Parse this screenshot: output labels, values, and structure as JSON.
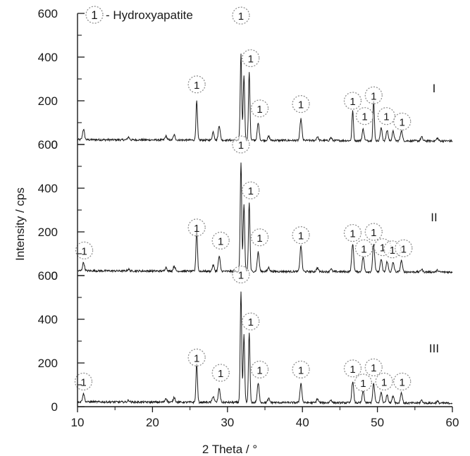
{
  "chart_data": {
    "type": "line",
    "xlabel": "2 Theta / °",
    "ylabel": "Intensity / cps",
    "xlim": [
      10,
      60
    ],
    "ylim": [
      0,
      600
    ],
    "x_ticks": [
      "10",
      "20",
      "30",
      "40",
      "50",
      "60"
    ],
    "y_ticks": [
      "0",
      "200",
      "400",
      "600"
    ],
    "legend": {
      "marker": "1",
      "text": "- Hydroxyapatite"
    },
    "grid": false,
    "panels": [
      {
        "name": "I",
        "peaks": [
          {
            "x": 10.8,
            "y": 70
          },
          {
            "x": 16.8,
            "y": 35
          },
          {
            "x": 21.8,
            "y": 40
          },
          {
            "x": 22.9,
            "y": 45
          },
          {
            "x": 25.9,
            "y": 200
          },
          {
            "x": 28.1,
            "y": 60
          },
          {
            "x": 28.9,
            "y": 90
          },
          {
            "x": 31.8,
            "y": 415
          },
          {
            "x": 32.2,
            "y": 320
          },
          {
            "x": 32.9,
            "y": 330
          },
          {
            "x": 34.1,
            "y": 100
          },
          {
            "x": 35.5,
            "y": 40
          },
          {
            "x": 39.8,
            "y": 120
          },
          {
            "x": 42.0,
            "y": 40
          },
          {
            "x": 43.8,
            "y": 35
          },
          {
            "x": 46.7,
            "y": 160
          },
          {
            "x": 48.1,
            "y": 75
          },
          {
            "x": 49.5,
            "y": 200
          },
          {
            "x": 50.5,
            "y": 80
          },
          {
            "x": 51.3,
            "y": 70
          },
          {
            "x": 52.1,
            "y": 65
          },
          {
            "x": 53.2,
            "y": 70
          },
          {
            "x": 55.9,
            "y": 40
          },
          {
            "x": 58.0,
            "y": 35
          }
        ],
        "markers": [
          {
            "x": 25.9,
            "y": 275
          },
          {
            "x": 31.8,
            "y": 590
          },
          {
            "x": 33.1,
            "y": 395
          },
          {
            "x": 34.3,
            "y": 165
          },
          {
            "x": 39.8,
            "y": 185
          },
          {
            "x": 46.7,
            "y": 200
          },
          {
            "x": 48.3,
            "y": 130
          },
          {
            "x": 49.5,
            "y": 225
          },
          {
            "x": 51.2,
            "y": 130
          },
          {
            "x": 53.3,
            "y": 105
          }
        ]
      },
      {
        "name": "II",
        "peaks": [
          {
            "x": 10.8,
            "y": 60
          },
          {
            "x": 16.8,
            "y": 30
          },
          {
            "x": 21.8,
            "y": 40
          },
          {
            "x": 22.9,
            "y": 45
          },
          {
            "x": 25.9,
            "y": 215
          },
          {
            "x": 28.1,
            "y": 50
          },
          {
            "x": 28.9,
            "y": 90
          },
          {
            "x": 31.8,
            "y": 520
          },
          {
            "x": 32.2,
            "y": 330
          },
          {
            "x": 32.9,
            "y": 335
          },
          {
            "x": 34.1,
            "y": 110
          },
          {
            "x": 35.5,
            "y": 40
          },
          {
            "x": 39.8,
            "y": 140
          },
          {
            "x": 42.0,
            "y": 40
          },
          {
            "x": 43.8,
            "y": 35
          },
          {
            "x": 46.7,
            "y": 150
          },
          {
            "x": 48.1,
            "y": 90
          },
          {
            "x": 49.5,
            "y": 150
          },
          {
            "x": 50.5,
            "y": 80
          },
          {
            "x": 51.3,
            "y": 70
          },
          {
            "x": 52.1,
            "y": 65
          },
          {
            "x": 53.2,
            "y": 75
          },
          {
            "x": 55.9,
            "y": 35
          },
          {
            "x": 58.0,
            "y": 30
          }
        ],
        "markers": [
          {
            "x": 10.9,
            "y": 115
          },
          {
            "x": 25.9,
            "y": 220
          },
          {
            "x": 29.1,
            "y": 160
          },
          {
            "x": 31.8,
            "y": 600
          },
          {
            "x": 33.1,
            "y": 390
          },
          {
            "x": 34.3,
            "y": 175
          },
          {
            "x": 39.8,
            "y": 185
          },
          {
            "x": 46.7,
            "y": 195
          },
          {
            "x": 48.2,
            "y": 125
          },
          {
            "x": 49.5,
            "y": 200
          },
          {
            "x": 50.7,
            "y": 130
          },
          {
            "x": 52.0,
            "y": 120
          },
          {
            "x": 53.5,
            "y": 125
          }
        ]
      },
      {
        "name": "III",
        "peaks": [
          {
            "x": 10.8,
            "y": 60
          },
          {
            "x": 16.8,
            "y": 30
          },
          {
            "x": 21.8,
            "y": 40
          },
          {
            "x": 22.9,
            "y": 45
          },
          {
            "x": 25.9,
            "y": 200
          },
          {
            "x": 28.1,
            "y": 50
          },
          {
            "x": 28.9,
            "y": 85
          },
          {
            "x": 31.8,
            "y": 525
          },
          {
            "x": 32.2,
            "y": 330
          },
          {
            "x": 32.9,
            "y": 340
          },
          {
            "x": 34.1,
            "y": 110
          },
          {
            "x": 35.5,
            "y": 40
          },
          {
            "x": 39.8,
            "y": 110
          },
          {
            "x": 42.0,
            "y": 40
          },
          {
            "x": 43.8,
            "y": 35
          },
          {
            "x": 46.7,
            "y": 120
          },
          {
            "x": 48.1,
            "y": 75
          },
          {
            "x": 49.5,
            "y": 110
          },
          {
            "x": 50.5,
            "y": 70
          },
          {
            "x": 51.3,
            "y": 60
          },
          {
            "x": 52.1,
            "y": 55
          },
          {
            "x": 53.2,
            "y": 70
          },
          {
            "x": 55.9,
            "y": 35
          },
          {
            "x": 58.0,
            "y": 30
          }
        ],
        "markers": [
          {
            "x": 10.8,
            "y": 115
          },
          {
            "x": 25.9,
            "y": 225
          },
          {
            "x": 29.1,
            "y": 155
          },
          {
            "x": 31.8,
            "y": 605
          },
          {
            "x": 33.1,
            "y": 390
          },
          {
            "x": 34.3,
            "y": 170
          },
          {
            "x": 39.8,
            "y": 170
          },
          {
            "x": 46.7,
            "y": 175
          },
          {
            "x": 48.1,
            "y": 110
          },
          {
            "x": 49.5,
            "y": 180
          },
          {
            "x": 50.9,
            "y": 115
          },
          {
            "x": 53.3,
            "y": 115
          }
        ]
      }
    ]
  },
  "colors": {
    "line": "#1a1a1a",
    "axis": "#1a1a1a",
    "marker_circle": "#888888"
  }
}
